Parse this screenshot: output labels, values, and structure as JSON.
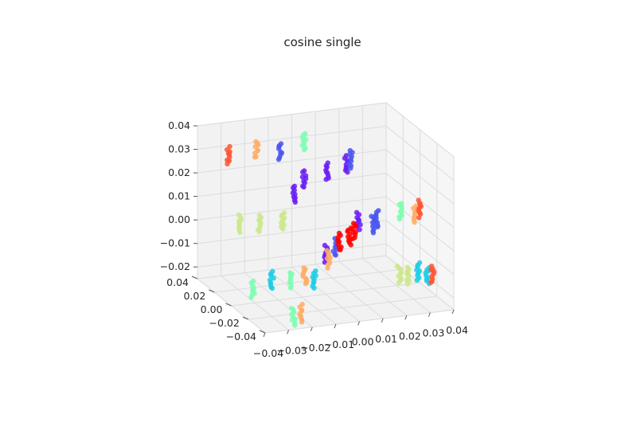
{
  "chart_data": {
    "type": "scatter",
    "projection": "3d",
    "title": "cosine single",
    "xlabel": "",
    "ylabel": "",
    "zlabel": "",
    "grid": true,
    "legend": "none",
    "xlim": [
      -0.04,
      0.04
    ],
    "ylim": [
      -0.04,
      0.04
    ],
    "zlim": [
      -0.025,
      0.04
    ],
    "x_ticks": [
      "−0.04",
      "−0.03",
      "−0.02",
      "−0.01",
      "0.00",
      "0.01",
      "0.02",
      "0.03",
      "0.04"
    ],
    "y_ticks": [
      "−0.04",
      "−0.02",
      "0.00",
      "0.02",
      "0.04"
    ],
    "z_ticks": [
      "−0.02",
      "−0.01",
      "0.00",
      "0.01",
      "0.02",
      "0.03",
      "0.04"
    ],
    "x_tick_values": [
      -0.04,
      -0.03,
      -0.02,
      -0.01,
      0.0,
      0.01,
      0.02,
      0.03,
      0.04
    ],
    "y_tick_values": [
      -0.04,
      -0.02,
      0.0,
      0.02,
      0.04
    ],
    "z_tick_values": [
      -0.02,
      -0.01,
      0.0,
      0.01,
      0.02,
      0.03,
      0.04
    ],
    "colormap": "rainbow",
    "series": [
      {
        "color": "#6a1cf6",
        "points": [
          [
            -0.006,
            0.02,
            0.012
          ],
          [
            -0.002,
            0.02,
            0.018
          ],
          [
            0.008,
            0.02,
            0.02
          ],
          [
            0.016,
            0.02,
            0.022
          ],
          [
            0.0,
            0.0,
            -0.008
          ],
          [
            0.014,
            0.0,
            0.004
          ]
        ]
      },
      {
        "color": "#4a56f0",
        "points": [
          [
            -0.012,
            0.02,
            0.031
          ],
          [
            0.018,
            0.02,
            0.024
          ],
          [
            0.022,
            0.0,
            0.004
          ],
          [
            0.02,
            0.0,
            0.002
          ],
          [
            0.004,
            0.0,
            -0.006
          ]
        ]
      },
      {
        "color": "#1ccde6",
        "points": [
          [
            -0.03,
            -0.02,
            -0.01
          ],
          [
            -0.012,
            -0.02,
            -0.012
          ],
          [
            0.032,
            -0.02,
            -0.014
          ],
          [
            0.036,
            -0.02,
            -0.016
          ]
        ]
      },
      {
        "color": "#7efeb2",
        "points": [
          [
            -0.002,
            0.02,
            0.034
          ],
          [
            -0.038,
            -0.02,
            -0.013
          ],
          [
            -0.022,
            -0.02,
            -0.011
          ],
          [
            -0.028,
            -0.04,
            -0.02
          ],
          [
            0.032,
            0.0,
            0.006
          ]
        ]
      },
      {
        "color": "#cbe88a",
        "points": [
          [
            -0.036,
            0.0,
            0.009
          ],
          [
            -0.028,
            0.0,
            0.008
          ],
          [
            -0.018,
            0.0,
            0.008
          ],
          [
            0.024,
            -0.02,
            -0.014
          ],
          [
            0.028,
            -0.02,
            -0.015
          ]
        ]
      },
      {
        "color": "#ffad66",
        "points": [
          [
            -0.022,
            0.02,
            0.033
          ],
          [
            -0.016,
            -0.02,
            -0.01
          ],
          [
            -0.006,
            -0.02,
            -0.004
          ],
          [
            -0.025,
            -0.04,
            -0.019
          ],
          [
            0.038,
            0.0,
            0.004
          ]
        ]
      },
      {
        "color": "#ff0000",
        "points": [
          [
            0.006,
            0.0,
            -0.004
          ],
          [
            0.01,
            0.0,
            -0.002
          ],
          [
            0.012,
            0.0,
            0.0
          ]
        ]
      },
      {
        "color": "#ff5533",
        "points": [
          [
            -0.034,
            0.02,
            0.032
          ],
          [
            0.04,
            0.0,
            0.006
          ],
          [
            0.038,
            -0.02,
            -0.016
          ]
        ]
      }
    ]
  }
}
